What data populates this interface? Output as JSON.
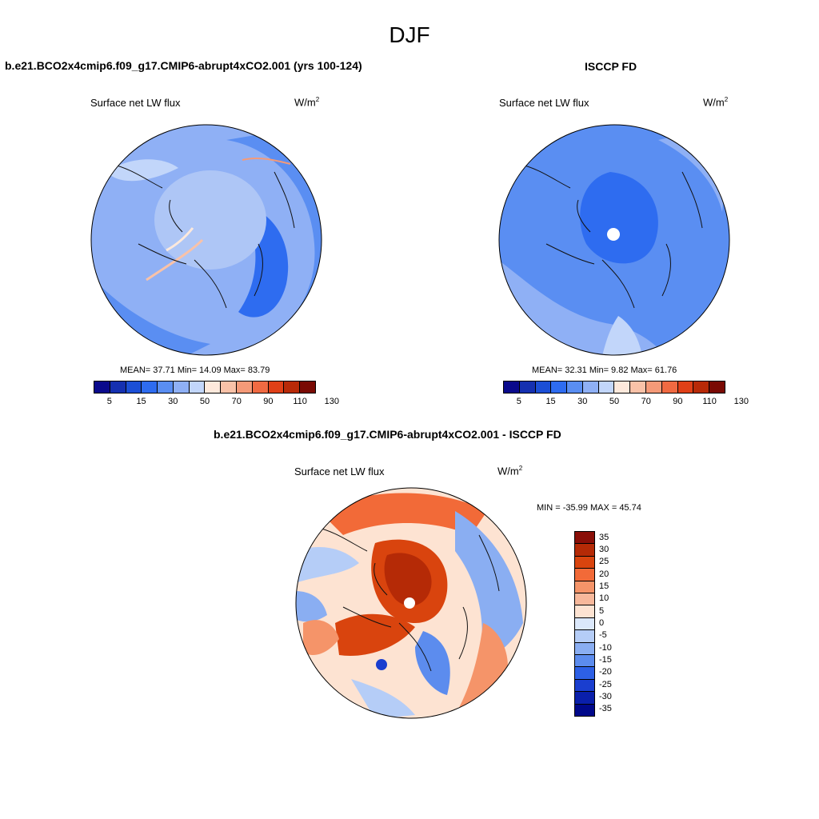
{
  "season": "DJF",
  "panels": {
    "model": {
      "title": "b.e21.BCO2x4cmip6.f09_g17.CMIP6-abrupt4xCO2.001 (yrs 100-124)",
      "variable": "Surface net LW flux",
      "units": "W/m",
      "units_exp": "2",
      "stats": "MEAN=  37.71  Min=  14.09  Max=  83.79"
    },
    "obs": {
      "title": "ISCCP FD",
      "variable": "Surface net LW flux",
      "units": "W/m",
      "units_exp": "2",
      "stats": "MEAN=  32.31  Min=   9.82  Max=  61.76"
    },
    "diff": {
      "title": "b.e21.BCO2x4cmip6.f09_g17.CMIP6-abrupt4xCO2.001 - ISCCP FD",
      "variable": "Surface net LW flux",
      "units": "W/m",
      "units_exp": "2",
      "stats": "MIN = -35.99 MAX =  45.74"
    }
  },
  "abs_colorbar": {
    "colors": [
      "#0a0a8c",
      "#1530b0",
      "#1c4fd6",
      "#2e6cf0",
      "#5a8ef2",
      "#8fb0f5",
      "#c2d6fa",
      "#fde9dc",
      "#f9c2a8",
      "#f59a78",
      "#f06a42",
      "#e04018",
      "#b82a08",
      "#7a0a04"
    ],
    "labels": [
      "5",
      "15",
      "30",
      "50",
      "70",
      "90",
      "110",
      "130"
    ]
  },
  "diff_colorbar": {
    "colors": [
      "#8a0f08",
      "#b52a06",
      "#d9440e",
      "#f26a38",
      "#f59469",
      "#f7b89b",
      "#fde3d2",
      "#dbe8fb",
      "#b5cdf7",
      "#8aaef2",
      "#5c8cee",
      "#2d60e6",
      "#1a3ecf",
      "#0a1fab",
      "#00088a"
    ],
    "labels": [
      "35",
      "30",
      "25",
      "20",
      "15",
      "10",
      "5",
      "0",
      "-5",
      "-10",
      "-15",
      "-20",
      "-25",
      "-30",
      "-35"
    ]
  }
}
